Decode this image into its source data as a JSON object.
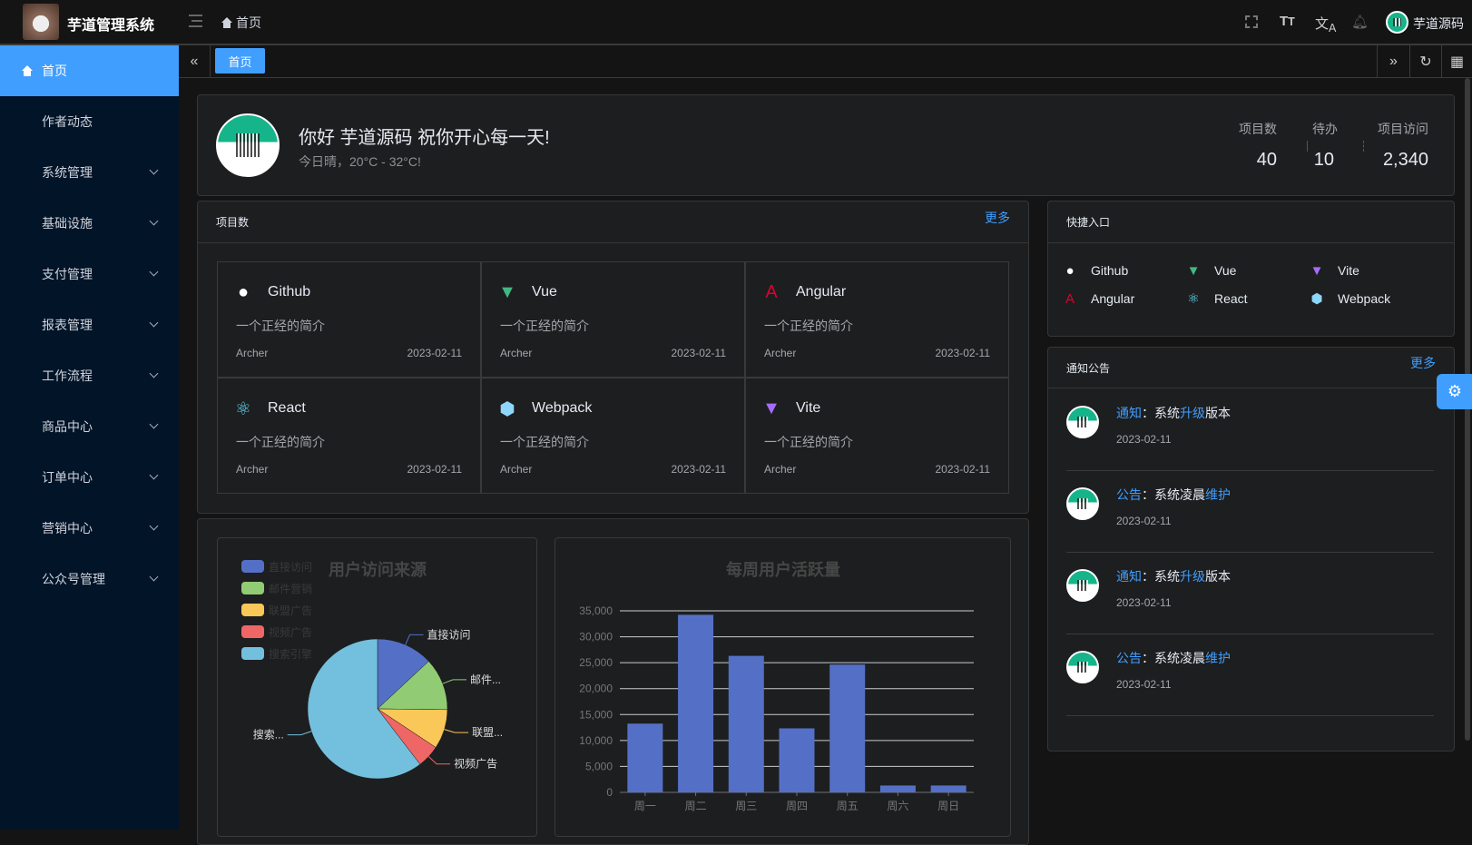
{
  "header": {
    "app_title": "芋道管理系统",
    "breadcrumb": "首页",
    "user_name": "芋道源码",
    "icons": [
      "fullscreen-icon",
      "font-size-icon",
      "translate-icon",
      "bell-icon"
    ]
  },
  "sidebar": {
    "items": [
      {
        "label": "首页",
        "active": true
      },
      {
        "label": "作者动态"
      },
      {
        "label": "系统管理",
        "expandable": true
      },
      {
        "label": "基础设施",
        "expandable": true
      },
      {
        "label": "支付管理",
        "expandable": true
      },
      {
        "label": "报表管理",
        "expandable": true
      },
      {
        "label": "工作流程",
        "expandable": true
      },
      {
        "label": "商品中心",
        "expandable": true
      },
      {
        "label": "订单中心",
        "expandable": true
      },
      {
        "label": "营销中心",
        "expandable": true
      },
      {
        "label": "公众号管理",
        "expandable": true
      }
    ]
  },
  "tabs": [
    {
      "label": "首页",
      "active": true
    }
  ],
  "welcome": {
    "greeting": "你好 芋道源码 祝你开心每一天!",
    "weather": "今日晴，20°C - 32°C!",
    "stats": [
      {
        "label": "项目数",
        "value": "40"
      },
      {
        "label": "待办",
        "value": "10"
      },
      {
        "label": "项目访问",
        "value": "2,340"
      }
    ]
  },
  "projects": {
    "title": "项目数",
    "more": "更多",
    "items": [
      {
        "name": "Github",
        "icon": "github-icon",
        "desc": "一个正经的简介",
        "author": "Archer",
        "date": "2023-02-11"
      },
      {
        "name": "Vue",
        "icon": "vue-icon",
        "desc": "一个正经的简介",
        "author": "Archer",
        "date": "2023-02-11"
      },
      {
        "name": "Angular",
        "icon": "angular-icon",
        "desc": "一个正经的简介",
        "author": "Archer",
        "date": "2023-02-11"
      },
      {
        "name": "React",
        "icon": "react-icon",
        "desc": "一个正经的简介",
        "author": "Archer",
        "date": "2023-02-11"
      },
      {
        "name": "Webpack",
        "icon": "webpack-icon",
        "desc": "一个正经的简介",
        "author": "Archer",
        "date": "2023-02-11"
      },
      {
        "name": "Vite",
        "icon": "vite-icon",
        "desc": "一个正经的简介",
        "author": "Archer",
        "date": "2023-02-11"
      }
    ]
  },
  "quick": {
    "title": "快捷入口",
    "items": [
      {
        "name": "Github",
        "icon": "github-icon"
      },
      {
        "name": "Vue",
        "icon": "vue-icon"
      },
      {
        "name": "Vite",
        "icon": "vite-icon"
      },
      {
        "name": "Angular",
        "icon": "angular-icon"
      },
      {
        "name": "React",
        "icon": "react-icon"
      },
      {
        "name": "Webpack",
        "icon": "webpack-icon"
      }
    ]
  },
  "notices": {
    "title": "通知公告",
    "more": "更多",
    "items": [
      {
        "type": "通知",
        "sep": "：",
        "pre": "系统",
        "hl": "升级",
        "post": "版本",
        "date": "2023-02-11"
      },
      {
        "type": "公告",
        "sep": "：",
        "pre": "系统凌晨",
        "hl": "维护",
        "post": "",
        "date": "2023-02-11"
      },
      {
        "type": "通知",
        "sep": "：",
        "pre": "系统",
        "hl": "升级",
        "post": "版本",
        "date": "2023-02-11"
      },
      {
        "type": "公告",
        "sep": "：",
        "pre": "系统凌晨",
        "hl": "维护",
        "post": "",
        "date": "2023-02-11"
      }
    ]
  },
  "chart_data": [
    {
      "type": "pie",
      "title": "用户访问来源",
      "legend_position": "top-left",
      "categories": [
        "直接访问",
        "邮件营销",
        "联盟广告",
        "视频广告",
        "搜索引擎"
      ],
      "values": [
        335,
        310,
        234,
        135,
        1548
      ],
      "labels": [
        "直接访问",
        "邮件...",
        "联盟...",
        "视频广告",
        "搜索..."
      ],
      "colors": [
        "#5470c6",
        "#91cc75",
        "#fac858",
        "#ee6666",
        "#73c0de"
      ]
    },
    {
      "type": "bar",
      "title": "每周用户活跃量",
      "categories": [
        "周一",
        "周二",
        "周三",
        "周四",
        "周五",
        "周六",
        "周日"
      ],
      "values": [
        13253,
        34235,
        26321,
        12340,
        24643,
        1322,
        1324
      ],
      "ylim": [
        0,
        35000
      ],
      "yticks": [
        "0",
        "5,000",
        "10,000",
        "15,000",
        "20,000",
        "25,000",
        "30,000",
        "35,000"
      ],
      "grid": true,
      "color": "#5470c6"
    }
  ]
}
